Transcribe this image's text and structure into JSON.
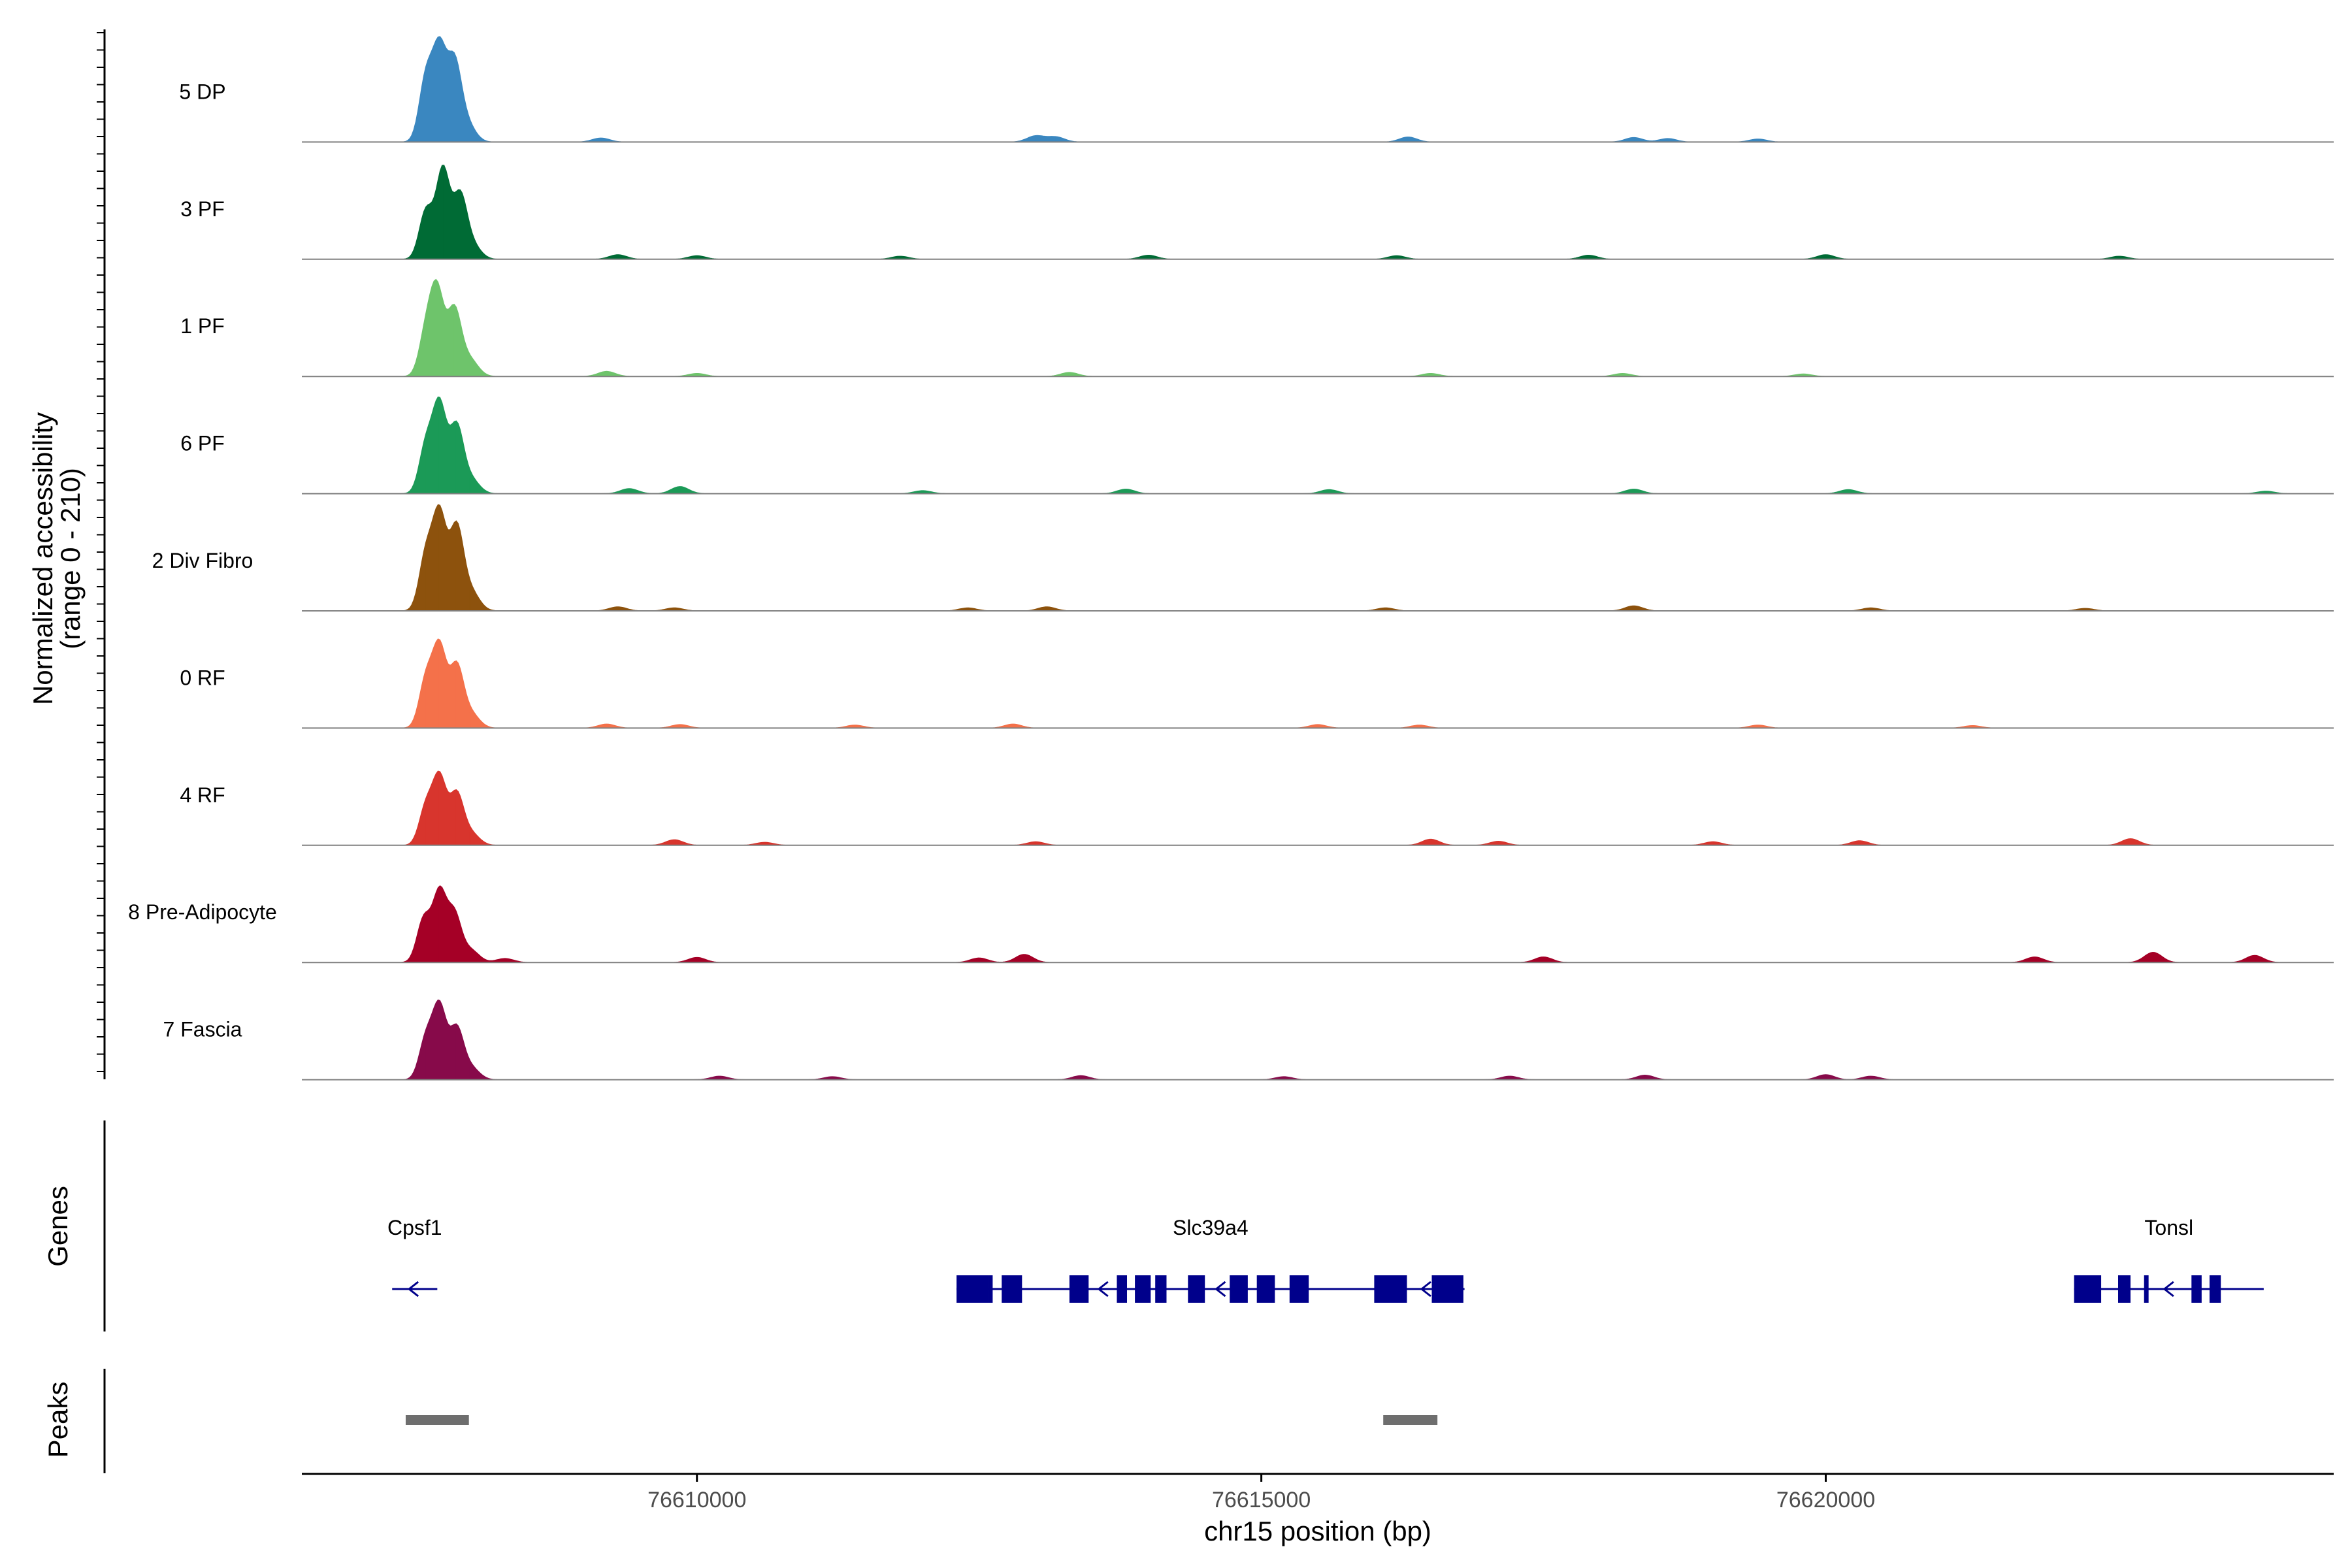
{
  "chart_data": {
    "type": "area",
    "chromosome": "chr15",
    "xlabel": "chr15 position (bp)",
    "ylabel_line1": "Normalized accessibility",
    "ylabel_line2": "(range 0 - 210)",
    "y_range": [
      0,
      210
    ],
    "xlim": [
      76606500,
      76624500
    ],
    "x_ticks": [
      76610000,
      76615000,
      76620000
    ],
    "x_tick_labels": [
      "76610000",
      "76615000",
      "76620000"
    ],
    "series": [
      {
        "name": "5 DP",
        "color": "#3a87c0",
        "peaks": [
          [
            76607600,
            125
          ],
          [
            76607720,
            175
          ],
          [
            76607850,
            140
          ],
          [
            76607950,
            40
          ],
          [
            76609150,
            8
          ],
          [
            76613000,
            12
          ],
          [
            76613180,
            10
          ],
          [
            76616300,
            10
          ],
          [
            76618300,
            9
          ],
          [
            76618600,
            7
          ],
          [
            76619400,
            6
          ]
        ]
      },
      {
        "name": "3 PF",
        "color": "#006b35",
        "peaks": [
          [
            76607600,
            95
          ],
          [
            76607750,
            175
          ],
          [
            76607900,
            115
          ],
          [
            76608000,
            30
          ],
          [
            76609300,
            9
          ],
          [
            76610000,
            7
          ],
          [
            76611800,
            6
          ],
          [
            76614000,
            8
          ],
          [
            76616200,
            7
          ],
          [
            76617900,
            8
          ],
          [
            76620000,
            9
          ],
          [
            76622600,
            6
          ]
        ]
      },
      {
        "name": "1 PF",
        "color": "#6ec46b",
        "peaks": [
          [
            76607600,
            85
          ],
          [
            76607700,
            160
          ],
          [
            76607850,
            125
          ],
          [
            76607980,
            35
          ],
          [
            76609200,
            10
          ],
          [
            76610000,
            6
          ],
          [
            76613300,
            8
          ],
          [
            76616500,
            6
          ],
          [
            76618200,
            6
          ],
          [
            76619800,
            5
          ]
        ]
      },
      {
        "name": "6 PF",
        "color": "#1b9a57",
        "peaks": [
          [
            76607600,
            95
          ],
          [
            76607720,
            170
          ],
          [
            76607870,
            125
          ],
          [
            76607990,
            30
          ],
          [
            76609400,
            10
          ],
          [
            76609850,
            14
          ],
          [
            76612000,
            6
          ],
          [
            76613800,
            9
          ],
          [
            76615600,
            8
          ],
          [
            76618300,
            9
          ],
          [
            76620200,
            8
          ],
          [
            76623900,
            5
          ]
        ]
      },
      {
        "name": "2 Div Fibro",
        "color": "#8d520d",
        "peaks": [
          [
            76607600,
            110
          ],
          [
            76607720,
            185
          ],
          [
            76607870,
            155
          ],
          [
            76607990,
            40
          ],
          [
            76609300,
            8
          ],
          [
            76609800,
            6
          ],
          [
            76612400,
            6
          ],
          [
            76613100,
            8
          ],
          [
            76616100,
            6
          ],
          [
            76618300,
            10
          ],
          [
            76620400,
            6
          ],
          [
            76622300,
            5
          ]
        ]
      },
      {
        "name": "0 RF",
        "color": "#f4714a",
        "peaks": [
          [
            76607600,
            95
          ],
          [
            76607720,
            155
          ],
          [
            76607870,
            115
          ],
          [
            76607990,
            30
          ],
          [
            76609200,
            8
          ],
          [
            76609850,
            7
          ],
          [
            76611400,
            6
          ],
          [
            76612800,
            8
          ],
          [
            76615500,
            7
          ],
          [
            76616400,
            6
          ],
          [
            76619400,
            6
          ],
          [
            76621300,
            5
          ]
        ]
      },
      {
        "name": "4 RF",
        "color": "#d8352d",
        "peaks": [
          [
            76607600,
            75
          ],
          [
            76607720,
            130
          ],
          [
            76607870,
            95
          ],
          [
            76607990,
            25
          ],
          [
            76609800,
            11
          ],
          [
            76610600,
            6
          ],
          [
            76613000,
            7
          ],
          [
            76616500,
            12
          ],
          [
            76617100,
            8
          ],
          [
            76619000,
            7
          ],
          [
            76620300,
            9
          ],
          [
            76622700,
            13
          ]
        ]
      },
      {
        "name": "8 Pre-Adipocyte",
        "color": "#a50026",
        "peaks": [
          [
            76607580,
            85
          ],
          [
            76607720,
            135
          ],
          [
            76607850,
            90
          ],
          [
            76607990,
            25
          ],
          [
            76608300,
            8
          ],
          [
            76610000,
            10
          ],
          [
            76612500,
            9
          ],
          [
            76612900,
            16
          ],
          [
            76617500,
            11
          ],
          [
            76621850,
            11
          ],
          [
            76622900,
            20
          ],
          [
            76623800,
            14
          ]
        ]
      },
      {
        "name": "7 Fascia",
        "color": "#870a4a",
        "peaks": [
          [
            76607600,
            80
          ],
          [
            76607720,
            140
          ],
          [
            76607870,
            95
          ],
          [
            76607990,
            25
          ],
          [
            76610200,
            7
          ],
          [
            76611200,
            6
          ],
          [
            76613400,
            8
          ],
          [
            76615200,
            6
          ],
          [
            76617200,
            7
          ],
          [
            76618400,
            9
          ],
          [
            76620000,
            10
          ],
          [
            76620400,
            7
          ]
        ]
      }
    ]
  },
  "genes_panel": {
    "title": "Genes",
    "color": "#00008b",
    "genes": [
      {
        "name": "Cpsf1",
        "start": 76607300,
        "end": 76607700,
        "strand": "-",
        "exons": [],
        "arrows": [
          76607450
        ]
      },
      {
        "name": "Slc39a4",
        "start": 76612300,
        "end": 76616800,
        "strand": "-",
        "exons": [
          [
            76612300,
            76612580
          ],
          [
            76612580,
            76612620
          ],
          [
            76612700,
            76612880
          ],
          [
            76613300,
            76613470
          ],
          [
            76613720,
            76613810
          ],
          [
            76613880,
            76614020
          ],
          [
            76614060,
            76614160
          ],
          [
            76614350,
            76614500
          ],
          [
            76614720,
            76614880
          ],
          [
            76614960,
            76615120
          ],
          [
            76615250,
            76615420
          ],
          [
            76616000,
            76616290
          ],
          [
            76616510,
            76616790
          ]
        ],
        "arrows": [
          76613560,
          76614600,
          76616420
        ]
      },
      {
        "name": "Tonsl",
        "start": 76622200,
        "end": 76623880,
        "strand": "-",
        "exons": [
          [
            76622200,
            76622440
          ],
          [
            76622590,
            76622700
          ],
          [
            76622820,
            76622860
          ],
          [
            76623240,
            76623330
          ],
          [
            76623400,
            76623500
          ]
        ],
        "arrows": [
          76623000
        ]
      }
    ]
  },
  "peaks_panel": {
    "title": "Peaks",
    "color": "#6e6e6e",
    "regions": [
      [
        76607420,
        76607980
      ],
      [
        76616080,
        76616560
      ]
    ]
  }
}
